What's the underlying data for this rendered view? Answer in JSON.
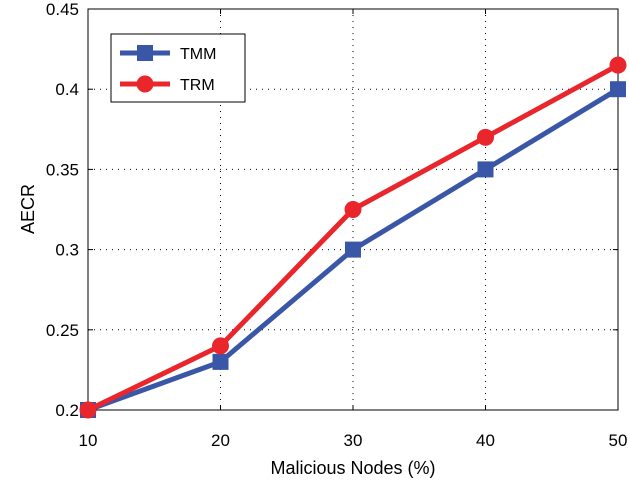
{
  "chart_data": {
    "type": "line",
    "title": "",
    "xlabel": "Malicious Nodes (%)",
    "ylabel": "AECR",
    "x": [
      10,
      20,
      30,
      40,
      50
    ],
    "xlim": [
      10,
      50
    ],
    "ylim": [
      0.2,
      0.45
    ],
    "xticks": [
      "10",
      "20",
      "30",
      "40",
      "50"
    ],
    "yticks": [
      "0.2",
      "0.25",
      "0.3",
      "0.35",
      "0.4",
      "0.45"
    ],
    "grid": true,
    "legend_position": "top-left",
    "series": [
      {
        "name": "TMM",
        "values": [
          0.2,
          0.23,
          0.3,
          0.35,
          0.4
        ],
        "color": "#3a56a6",
        "marker": "square"
      },
      {
        "name": "TRM",
        "values": [
          0.2,
          0.24,
          0.325,
          0.37,
          0.415
        ],
        "color": "#e8262b",
        "marker": "circle"
      }
    ]
  }
}
